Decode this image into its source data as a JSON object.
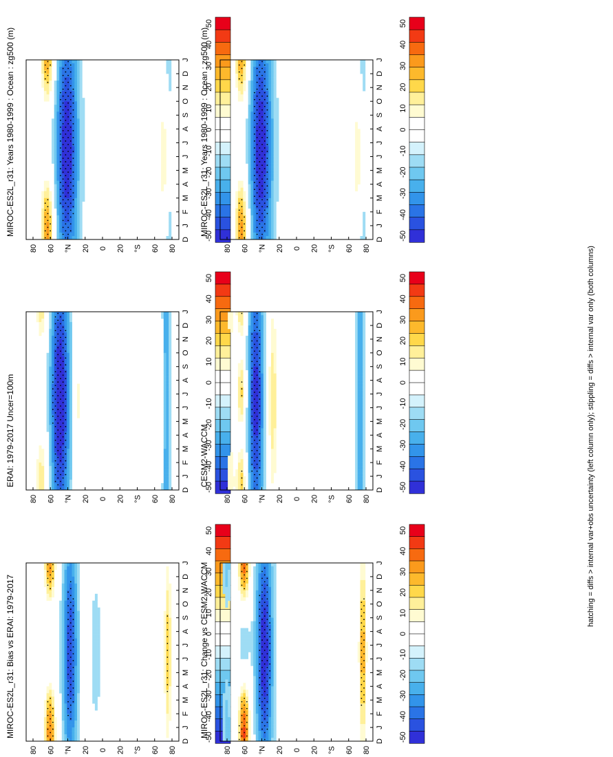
{
  "footnote": "hatching = diffs > internal var+obs uncertainty (left column only); stippling = diffs > internal var only (both columns)",
  "colorbar": {
    "labels": [
      "50",
      "40",
      "30",
      "20",
      "10",
      "0",
      "-10",
      "-20",
      "-30",
      "-40",
      "-50"
    ],
    "colors": [
      "#e8001a",
      "#f23a14",
      "#f76a10",
      "#fb9a1c",
      "#fdb92c",
      "#ffd84a",
      "#fff09a",
      "#fffbd2",
      "#ffffff",
      "#ffffff",
      "#d4f2fc",
      "#9edcf4",
      "#6fc8f0",
      "#48b0ec",
      "#3294ea",
      "#2a74e6",
      "#2a52e0",
      "#3030d8"
    ]
  },
  "chart_data": [
    {
      "type": "heatmap",
      "panel": "left-top",
      "title": "MIROC-ES2L_r31: Years 1980-1999 : Ocean : zg500 (m)",
      "month_ticks": [
        "D",
        "J",
        "F",
        "M",
        "A",
        "M",
        "J",
        "J",
        "A",
        "S",
        "O",
        "N",
        "D",
        "J"
      ],
      "lat_ticks": [
        "80",
        "60",
        "°N",
        "20",
        "0",
        "20",
        "°S",
        "60",
        "80"
      ],
      "lat_range": [
        -90,
        90
      ],
      "stippled": true
    },
    {
      "type": "heatmap",
      "panel": "right-top",
      "title": "MIROC-ES2L_r31: Years 1980-1999 : Ocean : zg500 (m)",
      "month_ticks": [
        "D",
        "J",
        "F",
        "M",
        "A",
        "M",
        "J",
        "J",
        "A",
        "S",
        "O",
        "N",
        "D",
        "J"
      ],
      "lat_ticks": [
        "80",
        "60",
        "°N",
        "20",
        "0",
        "20",
        "°S",
        "60",
        "80"
      ],
      "lat_range": [
        -90,
        90
      ],
      "stippled": true
    },
    {
      "type": "heatmap",
      "panel": "left-middle",
      "title": "ERAI: 1979-2017 Uncer=100m",
      "month_ticks": [
        "D",
        "J",
        "F",
        "M",
        "A",
        "M",
        "J",
        "J",
        "A",
        "S",
        "O",
        "N",
        "D",
        "J"
      ],
      "lat_ticks": [
        "80",
        "60",
        "°N",
        "20",
        "0",
        "20",
        "°S",
        "60",
        "80"
      ],
      "lat_range": [
        -90,
        90
      ],
      "stippled": true
    },
    {
      "type": "heatmap",
      "panel": "right-middle",
      "title": "CESM2-WACCM",
      "month_ticks": [
        "D",
        "J",
        "F",
        "M",
        "A",
        "M",
        "J",
        "J",
        "A",
        "S",
        "O",
        "N",
        "D",
        "J"
      ],
      "lat_ticks": [
        "80",
        "60",
        "°N",
        "20",
        "0",
        "20",
        "°S",
        "60",
        "80"
      ],
      "lat_range": [
        -90,
        90
      ],
      "stippled": true
    },
    {
      "type": "heatmap",
      "panel": "left-bottom",
      "title": "MIROC-ES2L_r31: Bias vs ERAI: 1979-2017",
      "month_ticks": [
        "D",
        "J",
        "F",
        "M",
        "A",
        "M",
        "J",
        "J",
        "A",
        "S",
        "O",
        "N",
        "D",
        "J"
      ],
      "lat_ticks": [
        "80",
        "60",
        "°N",
        "20",
        "0",
        "20",
        "°S",
        "60",
        "80"
      ],
      "lat_range": [
        -90,
        90
      ],
      "stippled": true
    },
    {
      "type": "heatmap",
      "panel": "right-bottom",
      "title": "MIROC-ES2L_r31: Change vs CESM2-WACCM",
      "month_ticks": [
        "D",
        "J",
        "F",
        "M",
        "A",
        "M",
        "J",
        "J",
        "A",
        "S",
        "O",
        "N",
        "D",
        "J"
      ],
      "lat_ticks": [
        "80",
        "60",
        "°N",
        "20",
        "0",
        "20",
        "°S",
        "60",
        "80"
      ],
      "lat_range": [
        -90,
        90
      ],
      "stippled": true
    }
  ]
}
